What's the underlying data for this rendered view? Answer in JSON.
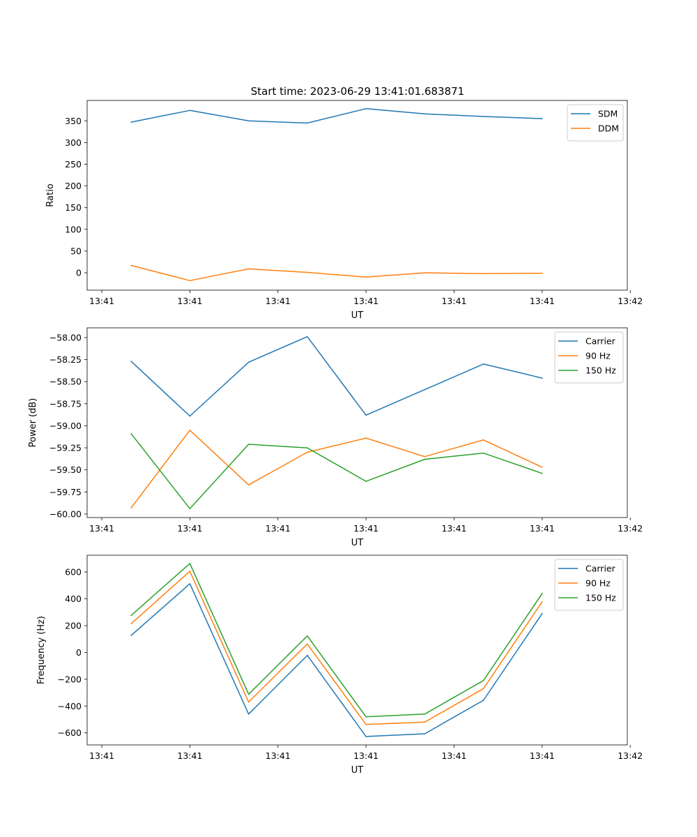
{
  "figure": {
    "title": "Start time: 2023-06-29 13:41:01.683871"
  },
  "colors": {
    "blue": "#1f77b4",
    "orange": "#ff7f0e",
    "green": "#2ca02c",
    "axes": "#000000",
    "legend_border": "#cccccc"
  },
  "chart_data": [
    {
      "type": "line",
      "title": "Start time: 2023-06-29 13:41:01.683871",
      "xlabel": "UT",
      "ylabel": "Ratio",
      "x": [
        1,
        2,
        3,
        4,
        5,
        6,
        7,
        8
      ],
      "xlim": [
        0.25,
        9.45
      ],
      "x_ticks": [
        0.5,
        2,
        3.5,
        5,
        6.5,
        8,
        9.5
      ],
      "x_tick_labels": [
        "13:41",
        "13:41",
        "13:41",
        "13:41",
        "13:41",
        "13:41",
        "13:42"
      ],
      "ylim": [
        -40,
        397
      ],
      "y_ticks": [
        0,
        50,
        100,
        150,
        200,
        250,
        300,
        350
      ],
      "y_tick_labels": [
        "0",
        "50",
        "100",
        "150",
        "200",
        "250",
        "300",
        "350"
      ],
      "legend": "top-right",
      "grid": false,
      "series": [
        {
          "name": "SDM",
          "color": "#1f77b4",
          "values": [
            347,
            374,
            350,
            345,
            378,
            366,
            360,
            355
          ]
        },
        {
          "name": "DDM",
          "color": "#ff7f0e",
          "values": [
            17,
            -18,
            9,
            1,
            -10,
            0,
            -2,
            -1
          ]
        }
      ]
    },
    {
      "type": "line",
      "title": "",
      "xlabel": "UT",
      "ylabel": "Power (dB)",
      "x": [
        1,
        2,
        3,
        4,
        5,
        6,
        7,
        8
      ],
      "xlim": [
        0.25,
        9.45
      ],
      "x_ticks": [
        0.5,
        2,
        3.5,
        5,
        6.5,
        8,
        9.5
      ],
      "x_tick_labels": [
        "13:41",
        "13:41",
        "13:41",
        "13:41",
        "13:41",
        "13:41",
        "13:42"
      ],
      "ylim": [
        -60.04,
        -57.89
      ],
      "y_ticks": [
        -60.0,
        -59.75,
        -59.5,
        -59.25,
        -59.0,
        -58.75,
        -58.5,
        -58.25,
        -58.0
      ],
      "y_tick_labels": [
        "−60.00",
        "−59.75",
        "−59.50",
        "−59.25",
        "−59.00",
        "−58.75",
        "−58.50",
        "−58.25",
        "−58.00"
      ],
      "legend": "top-right",
      "grid": false,
      "series": [
        {
          "name": "Carrier",
          "color": "#1f77b4",
          "values": [
            -58.27,
            -58.89,
            -58.28,
            -57.99,
            -58.88,
            -58.59,
            -58.3,
            -58.46
          ]
        },
        {
          "name": "90 Hz",
          "color": "#ff7f0e",
          "values": [
            -59.93,
            -59.05,
            -59.67,
            -59.3,
            -59.14,
            -59.35,
            -59.16,
            -59.47
          ]
        },
        {
          "name": "150 Hz",
          "color": "#2ca02c",
          "values": [
            -59.09,
            -59.94,
            -59.21,
            -59.25,
            -59.63,
            -59.38,
            -59.31,
            -59.54
          ]
        }
      ]
    },
    {
      "type": "line",
      "title": "",
      "xlabel": "UT",
      "ylabel": "Frequency (Hz)",
      "x": [
        1,
        2,
        3,
        4,
        5,
        6,
        7,
        8
      ],
      "xlim": [
        0.25,
        9.45
      ],
      "x_ticks": [
        0.5,
        2,
        3.5,
        5,
        6.5,
        8,
        9.5
      ],
      "x_tick_labels": [
        "13:41",
        "13:41",
        "13:41",
        "13:41",
        "13:41",
        "13:41",
        "13:42"
      ],
      "ylim": [
        -690,
        725
      ],
      "y_ticks": [
        -600,
        -400,
        -200,
        0,
        200,
        400,
        600
      ],
      "y_tick_labels": [
        "−600",
        "−400",
        "−200",
        "0",
        "200",
        "400",
        "600"
      ],
      "legend": "top-right",
      "grid": false,
      "series": [
        {
          "name": "Carrier",
          "color": "#1f77b4",
          "values": [
            127,
            512,
            -460,
            -22,
            -627,
            -607,
            -357,
            290
          ]
        },
        {
          "name": "90 Hz",
          "color": "#ff7f0e",
          "values": [
            214,
            605,
            -370,
            63,
            -537,
            -520,
            -270,
            378
          ]
        },
        {
          "name": "150 Hz",
          "color": "#2ca02c",
          "values": [
            276,
            663,
            -312,
            123,
            -480,
            -460,
            -210,
            440
          ]
        }
      ]
    }
  ]
}
